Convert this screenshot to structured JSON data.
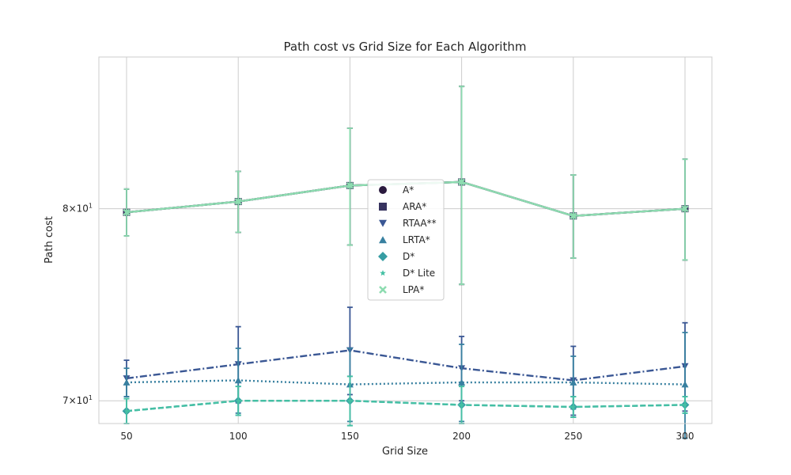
{
  "chart_data": {
    "type": "line",
    "title": "Path cost vs Grid Size for Each Algorithm",
    "xlabel": "Grid Size",
    "ylabel": "Path cost",
    "x": [
      50,
      100,
      150,
      200,
      250,
      300
    ],
    "x_tick_labels": [
      "50",
      "100",
      "150",
      "200",
      "250",
      "300"
    ],
    "y_scale": "log",
    "ylim": [
      68.9,
      88.9
    ],
    "y_ticks": [
      {
        "value": 70,
        "base": "7",
        "exp": "1"
      },
      {
        "value": 80,
        "base": "8",
        "exp": "1"
      }
    ],
    "grid": true,
    "legend_position": "center",
    "series": [
      {
        "name": "A*",
        "color": "#2a1a3e",
        "marker": "circle",
        "dash": "solid",
        "values": [
          79.8,
          80.4,
          81.3,
          81.5,
          79.6,
          80.0
        ],
        "err": [
          1.3,
          1.7,
          3.3,
          5.6,
          2.3,
          2.8
        ]
      },
      {
        "name": "ARA*",
        "color": "#37335f",
        "marker": "square",
        "dash": "solid",
        "values": [
          79.8,
          80.4,
          81.3,
          81.5,
          79.6,
          80.0
        ],
        "err": [
          1.3,
          1.7,
          3.3,
          5.6,
          2.3,
          2.8
        ]
      },
      {
        "name": "RTAA**",
        "color": "#3a5794",
        "marker": "triangle-down",
        "dash": "dashdot",
        "values": [
          71.1,
          71.8,
          72.5,
          71.6,
          71.0,
          71.7
        ],
        "err": [
          0.9,
          1.9,
          2.2,
          1.6,
          1.7,
          2.2
        ]
      },
      {
        "name": "LRTA*",
        "color": "#3880a0",
        "marker": "triangle-up",
        "dash": "dotted",
        "values": [
          70.9,
          71.0,
          70.8,
          70.9,
          70.9,
          70.8
        ],
        "err": [
          0.7,
          1.6,
          1.8,
          1.9,
          1.3,
          2.6
        ]
      },
      {
        "name": "D*",
        "color": "#369da3",
        "marker": "diamond",
        "dash": "dashed",
        "values": [
          69.5,
          70.0,
          70.0,
          69.8,
          69.7,
          69.8
        ],
        "err": [
          0.6,
          0.7,
          1.2,
          0.9,
          0.5,
          0.4
        ]
      },
      {
        "name": "D* Lite",
        "color": "#45c0a4",
        "marker": "star",
        "dash": "dashed",
        "values": [
          69.5,
          70.0,
          70.0,
          69.8,
          69.7,
          69.8
        ],
        "err": [
          0.6,
          0.7,
          1.2,
          0.9,
          0.5,
          0.4
        ]
      },
      {
        "name": "LPA*",
        "color": "#8ddcb0",
        "marker": "x",
        "dash": "solid",
        "values": [
          79.8,
          80.4,
          81.3,
          81.5,
          79.6,
          80.0
        ],
        "err": [
          1.3,
          1.7,
          3.3,
          5.6,
          2.3,
          2.8
        ]
      }
    ]
  }
}
